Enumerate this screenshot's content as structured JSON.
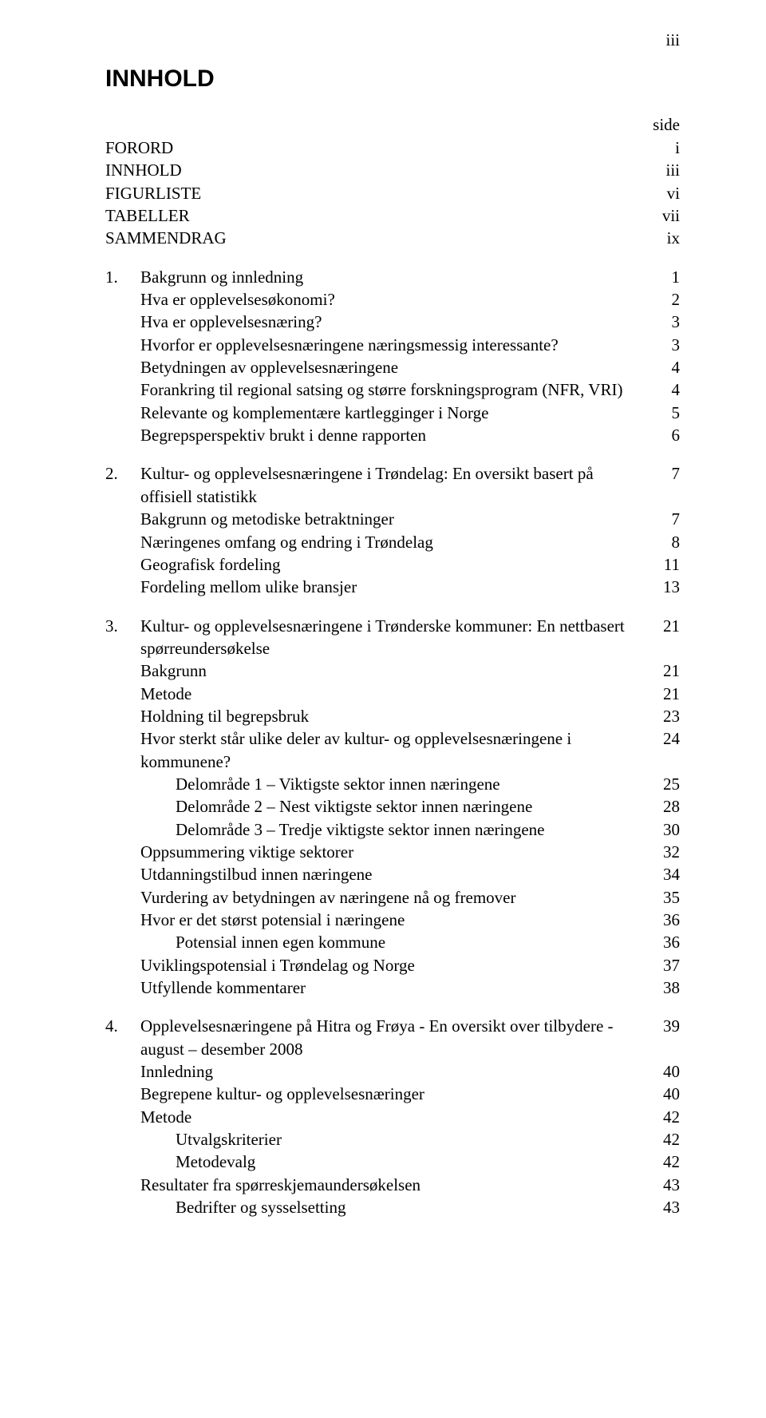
{
  "page_number_top": "iii",
  "title": "INNHOLD",
  "side_label": "side",
  "front_matter": [
    {
      "label": "FORORD",
      "page": "i"
    },
    {
      "label": "INNHOLD",
      "page": "iii"
    },
    {
      "label": "FIGURLISTE",
      "page": "vi"
    },
    {
      "label": "TABELLER",
      "page": "vii"
    },
    {
      "label": "SAMMENDRAG",
      "page": "ix"
    }
  ],
  "sections": [
    {
      "number": "1.",
      "heading": "Bakgrunn og innledning",
      "heading_page": "1",
      "items": [
        {
          "indent": 0,
          "label": "Hva er opplevelsesøkonomi?",
          "page": "2"
        },
        {
          "indent": 0,
          "label": "Hva er opplevelsesnæring?",
          "page": "3"
        },
        {
          "indent": 0,
          "label": "Hvorfor er opplevelsesnæringene næringsmessig interessante?",
          "page": "3"
        },
        {
          "indent": 0,
          "label": "Betydningen av opplevelsesnæringene",
          "page": "4"
        },
        {
          "indent": 0,
          "label": "Forankring til regional satsing og større forskningsprogram (NFR, VRI)",
          "page": "4"
        },
        {
          "indent": 0,
          "label": "Relevante og komplementære kartlegginger i Norge",
          "page": "5"
        },
        {
          "indent": 0,
          "label": "Begrepsperspektiv brukt i denne rapporten",
          "page": "6"
        }
      ]
    },
    {
      "number": "2.",
      "heading": "Kultur- og opplevelsesnæringene i Trøndelag: En oversikt basert på offisiell statistikk",
      "heading_page": "7",
      "items": [
        {
          "indent": 0,
          "label": "Bakgrunn og metodiske betraktninger",
          "page": "7"
        },
        {
          "indent": 0,
          "label": "Næringenes omfang og endring i Trøndelag",
          "page": "8"
        },
        {
          "indent": 0,
          "label": "Geografisk fordeling",
          "page": "11"
        },
        {
          "indent": 0,
          "label": "Fordeling mellom ulike bransjer",
          "page": "13"
        }
      ]
    },
    {
      "number": "3.",
      "heading": "Kultur- og opplevelsesnæringene i Trønderske kommuner: En nettbasert spørreundersøkelse",
      "heading_page": "21",
      "items": [
        {
          "indent": 0,
          "label": "Bakgrunn",
          "page": "21"
        },
        {
          "indent": 0,
          "label": "Metode",
          "page": "21"
        },
        {
          "indent": 0,
          "label": "Holdning til begrepsbruk",
          "page": "23"
        },
        {
          "indent": 0,
          "label": "Hvor sterkt står ulike deler av kultur- og opplevelsesnæringene i kommunene?",
          "page": "24"
        },
        {
          "indent": 1,
          "label": "Delområde 1 – Viktigste sektor innen næringene",
          "page": "25"
        },
        {
          "indent": 1,
          "label": "Delområde 2 – Nest viktigste sektor innen næringene",
          "page": "28"
        },
        {
          "indent": 1,
          "label": "Delområde 3 – Tredje viktigste sektor innen næringene",
          "page": "30"
        },
        {
          "indent": 0,
          "label": "Oppsummering viktige sektorer",
          "page": "32"
        },
        {
          "indent": 0,
          "label": "Utdanningstilbud innen næringene",
          "page": "34"
        },
        {
          "indent": 0,
          "label": "Vurdering av betydningen av næringene nå og fremover",
          "page": "35"
        },
        {
          "indent": 0,
          "label": "Hvor er det størst potensial i næringene",
          "page": "36"
        },
        {
          "indent": 1,
          "label": "Potensial innen egen kommune",
          "page": "36"
        },
        {
          "indent": 0,
          "label": "Uviklingspotensial i Trøndelag og Norge",
          "page": "37"
        },
        {
          "indent": 0,
          "label": "Utfyllende kommentarer",
          "page": "38"
        }
      ]
    },
    {
      "number": "4.",
      "heading": "Opplevelsesnæringene på Hitra og Frøya - En oversikt over tilbydere - august – desember 2008",
      "heading_page": "39",
      "items": [
        {
          "indent": 0,
          "label": "Innledning",
          "page": "40"
        },
        {
          "indent": 0,
          "label": "Begrepene kultur- og opplevelsesnæringer",
          "page": "40"
        },
        {
          "indent": 0,
          "label": "Metode",
          "page": "42"
        },
        {
          "indent": 1,
          "label": "Utvalgskriterier",
          "page": "42"
        },
        {
          "indent": 1,
          "label": "Metodevalg",
          "page": "42"
        },
        {
          "indent": 0,
          "label": "Resultater fra spørreskjemaundersøkelsen",
          "page": "43"
        },
        {
          "indent": 1,
          "label": "Bedrifter og sysselsetting",
          "page": "43"
        }
      ]
    }
  ]
}
